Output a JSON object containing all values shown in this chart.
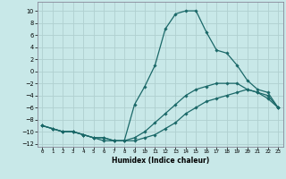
{
  "xlabel": "Humidex (Indice chaleur)",
  "background_color": "#c8e8e8",
  "grid_color": "#b0d0d0",
  "line_color": "#1a6868",
  "spine_color": "#888899",
  "xlim": [
    -0.5,
    23.5
  ],
  "ylim": [
    -12.5,
    11.5
  ],
  "xticks": [
    0,
    1,
    2,
    3,
    4,
    5,
    6,
    7,
    8,
    9,
    10,
    11,
    12,
    13,
    14,
    15,
    16,
    17,
    18,
    19,
    20,
    21,
    22,
    23
  ],
  "yticks": [
    -12,
    -10,
    -8,
    -6,
    -4,
    -2,
    0,
    2,
    4,
    6,
    8,
    10
  ],
  "series1_x": [
    0,
    1,
    2,
    3,
    4,
    5,
    6,
    7,
    8,
    9,
    10,
    11,
    12,
    13,
    14,
    15,
    16,
    17,
    18,
    19,
    20,
    21,
    22,
    23
  ],
  "series1_y": [
    -9,
    -9.5,
    -10,
    -10,
    -10.5,
    -11,
    -11,
    -11.5,
    -11.5,
    -11.5,
    -11,
    -10.5,
    -9.5,
    -8.5,
    -7,
    -6,
    -5,
    -4.5,
    -4,
    -3.5,
    -3,
    -3.5,
    -4.5,
    -6
  ],
  "series2_x": [
    0,
    1,
    2,
    3,
    4,
    5,
    6,
    7,
    8,
    9,
    10,
    11,
    12,
    13,
    14,
    15,
    16,
    17,
    18,
    19,
    20,
    21,
    22,
    23
  ],
  "series2_y": [
    -9,
    -9.5,
    -10,
    -10,
    -10.5,
    -11,
    -11.5,
    -11.5,
    -11.5,
    -5.5,
    -2.5,
    1,
    7,
    9.5,
    10,
    10,
    6.5,
    3.5,
    3,
    1,
    -1.5,
    -3,
    -3.5,
    -6
  ],
  "series3_x": [
    0,
    1,
    2,
    3,
    4,
    5,
    6,
    7,
    8,
    9,
    10,
    11,
    12,
    13,
    14,
    15,
    16,
    17,
    18,
    19,
    20,
    21,
    22,
    23
  ],
  "series3_y": [
    -9,
    -9.5,
    -10,
    -10,
    -10.5,
    -11,
    -11,
    -11.5,
    -11.5,
    -11,
    -10,
    -8.5,
    -7,
    -5.5,
    -4,
    -3,
    -2.5,
    -2,
    -2,
    -2,
    -3,
    -3.5,
    -4,
    -6
  ]
}
